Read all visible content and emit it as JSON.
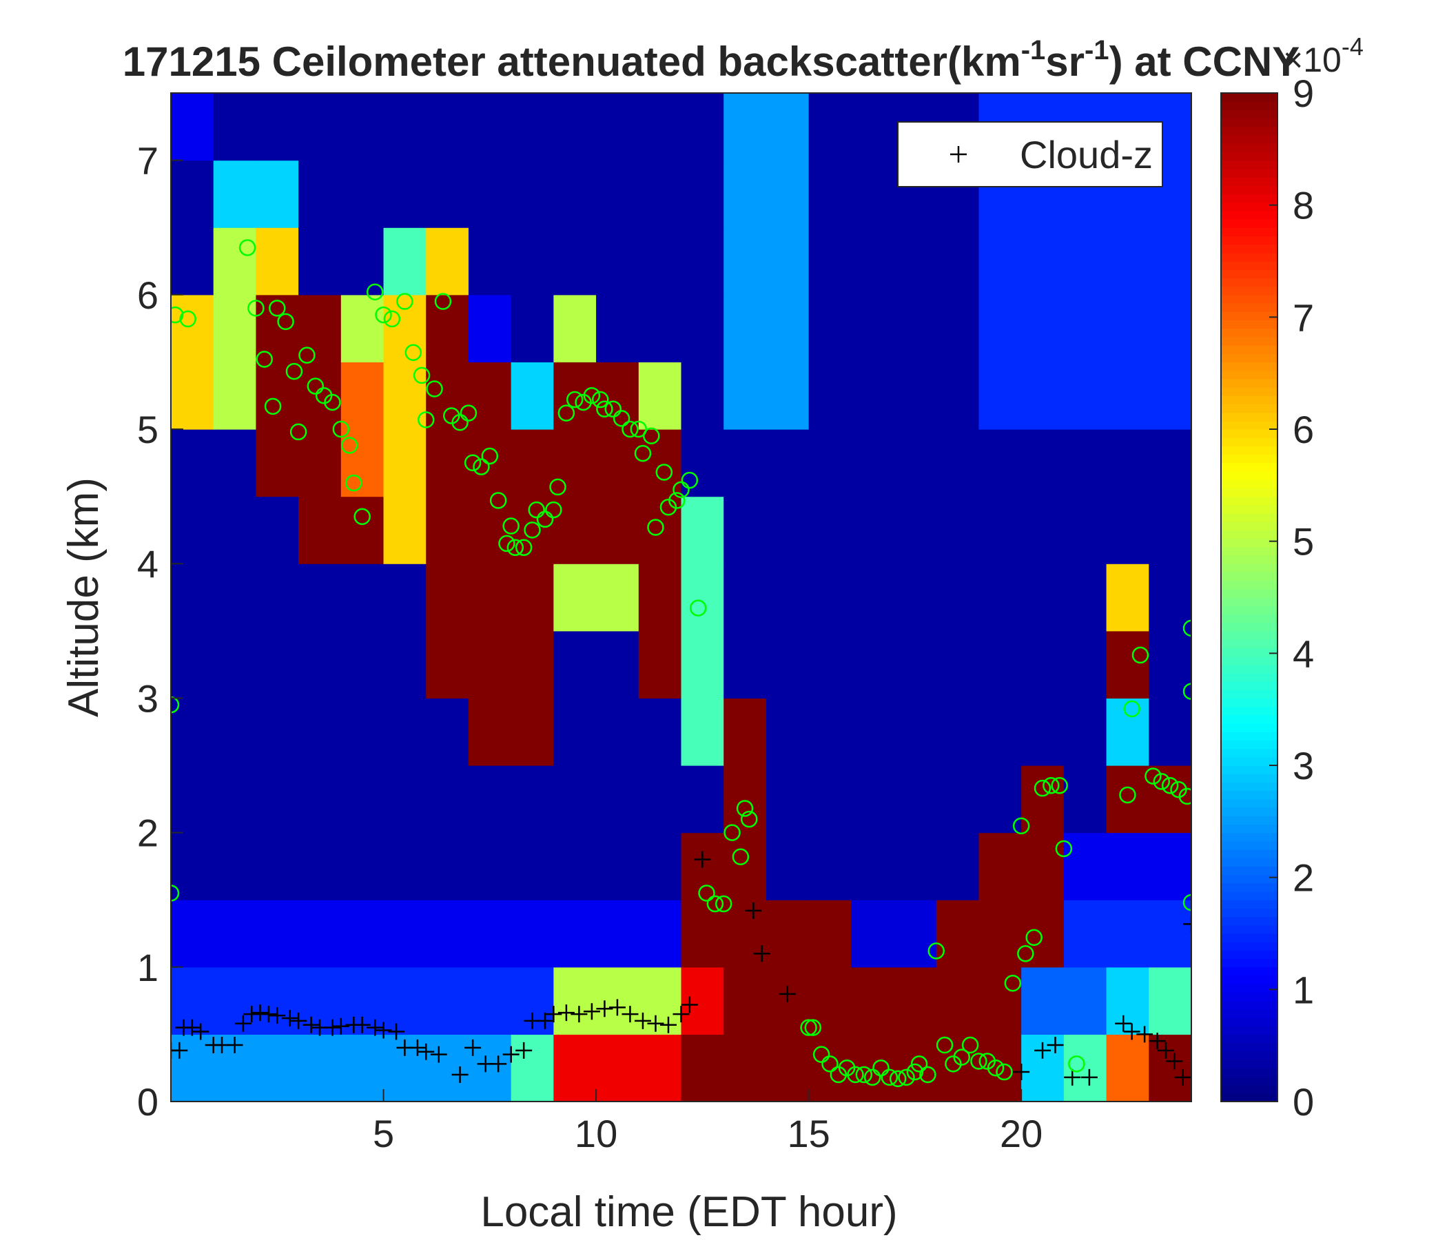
{
  "chart_data": {
    "type": "heatmap",
    "title": [
      "171215 Ceilometer attenuated backscatter(km",
      "-1",
      "sr",
      "-1",
      ") at CCNY"
    ],
    "x_label": "Local time (EDT hour)",
    "y_label": "Altitude (km)",
    "xlim": [
      0,
      24
    ],
    "ylim": [
      0,
      7.5
    ],
    "xticks": [
      5,
      10,
      15,
      20
    ],
    "yticks": [
      0,
      1,
      2,
      3,
      4,
      5,
      6,
      7
    ],
    "colormap": "jet",
    "clim": [
      0,
      9
    ],
    "colorbar_ticks": [
      0,
      1,
      2,
      3,
      4,
      5,
      6,
      7,
      8,
      9
    ],
    "colorbar_exponent": [
      "×10",
      "-4"
    ],
    "x_edges": [
      0,
      1,
      2,
      3,
      4,
      5,
      6,
      7,
      8,
      9,
      10,
      11,
      12,
      13,
      14,
      15,
      16,
      17,
      18,
      19,
      20,
      21,
      22,
      23,
      24
    ],
    "y_edges": [
      0,
      0.5,
      1,
      1.5,
      2,
      2.5,
      3,
      3.5,
      4,
      4.5,
      5,
      5.5,
      6,
      6.5,
      7,
      7.5
    ],
    "z": [
      [
        2.5,
        2.5,
        2.5,
        2.5,
        2.5,
        2.5,
        2.5,
        2.5,
        4,
        8,
        8,
        8,
        9,
        9,
        9,
        9,
        9,
        9,
        9,
        9,
        3,
        4,
        7,
        9
      ],
      [
        1.5,
        1.5,
        1.5,
        1.5,
        1.5,
        1.5,
        1.5,
        1.5,
        1.5,
        5,
        5,
        5,
        8,
        9,
        9,
        9,
        9,
        9,
        9,
        9,
        2,
        2,
        3,
        4
      ],
      [
        1,
        1,
        1,
        1,
        1,
        1,
        1,
        1,
        1,
        1,
        1,
        1,
        9,
        9,
        9,
        9,
        0.8,
        0.8,
        9,
        9,
        9,
        1.5,
        1.5,
        1.5
      ],
      [
        0.3,
        0.3,
        0.3,
        0.3,
        0.3,
        0.3,
        0.3,
        0.3,
        0.3,
        0.3,
        0.3,
        0.3,
        9,
        9,
        0.3,
        0.3,
        0.3,
        0.3,
        0.3,
        9,
        9,
        1,
        1,
        1
      ],
      [
        0.3,
        0.3,
        0.3,
        0.3,
        0.3,
        0.3,
        0.3,
        0.3,
        0.3,
        0.3,
        0.3,
        0.3,
        0.3,
        9,
        0.3,
        0.3,
        0.3,
        0.3,
        0.3,
        0.3,
        9,
        0.3,
        9,
        9
      ],
      [
        0.3,
        0.3,
        0.3,
        0.3,
        0.3,
        0.3,
        0.3,
        9,
        9,
        0.3,
        0.3,
        0.3,
        4,
        9,
        0.3,
        0.3,
        0.3,
        0.3,
        0.3,
        0.3,
        0.3,
        0.3,
        3,
        0.3
      ],
      [
        0.3,
        0.3,
        0.3,
        0.3,
        0.3,
        0.3,
        9,
        9,
        9,
        0.3,
        0.3,
        9,
        4,
        0.3,
        0.3,
        0.3,
        0.3,
        0.3,
        0.3,
        0.3,
        0.3,
        0.3,
        9,
        0.3
      ],
      [
        0.3,
        0.3,
        0.3,
        0.3,
        0.3,
        0.3,
        9,
        9,
        9,
        5,
        5,
        9,
        4,
        0.3,
        0.3,
        0.3,
        0.3,
        0.3,
        0.3,
        0.3,
        0.3,
        0.3,
        6,
        0.3
      ],
      [
        0.3,
        0.3,
        0.3,
        9,
        9,
        6,
        9,
        9,
        9,
        9,
        9,
        9,
        4,
        0.3,
        0.3,
        0.3,
        0.3,
        0.3,
        0.3,
        0.3,
        0.3,
        0.3,
        0.3,
        0.3
      ],
      [
        0.3,
        0.3,
        9,
        9,
        7,
        6,
        9,
        9,
        9,
        9,
        9,
        9,
        0.3,
        0.3,
        0.3,
        0.3,
        0.3,
        0.3,
        0.3,
        0.3,
        0.3,
        0.3,
        0.3,
        0.3
      ],
      [
        6,
        5,
        9,
        9,
        7,
        6,
        9,
        9,
        3,
        9,
        9,
        5,
        0.3,
        2.5,
        2.5,
        0.3,
        0.3,
        0.3,
        0.3,
        1.5,
        1.5,
        1.5,
        1.5,
        1.5
      ],
      [
        6,
        5,
        9,
        9,
        5,
        6,
        9,
        1,
        0.3,
        5,
        0.3,
        0.3,
        0.3,
        2.5,
        2.5,
        0.3,
        0.3,
        0.3,
        0.3,
        1.5,
        1.5,
        1.5,
        1.5,
        1.5
      ],
      [
        0.3,
        5,
        6,
        0.3,
        0.3,
        4,
        6,
        0.3,
        0.3,
        0.3,
        0.3,
        0.3,
        0.3,
        2.5,
        2.5,
        0.3,
        0.3,
        0.3,
        0.3,
        1.5,
        1.5,
        1.5,
        1.5,
        1.5
      ],
      [
        0.3,
        3,
        3,
        0.3,
        0.3,
        0.3,
        0.3,
        0.3,
        0.3,
        0.3,
        0.3,
        0.3,
        0.3,
        2.5,
        2.5,
        0.3,
        0.3,
        0.3,
        0.3,
        1.5,
        1.5,
        1.5,
        1.5,
        1.5
      ],
      [
        1,
        0.3,
        0.3,
        0.3,
        0.3,
        0.3,
        0.3,
        0.3,
        0.3,
        0.3,
        0.3,
        0.3,
        0.3,
        2.5,
        2.5,
        0.3,
        0.3,
        0.3,
        0.3,
        1.5,
        1.5,
        1.5,
        1.5,
        1.5
      ]
    ],
    "legend": "northeast",
    "series": [
      {
        "name": "Cloud-z",
        "color": "#000000",
        "marker": "+",
        "x": [
          0,
          0.2,
          0.3,
          0.5,
          0.7,
          1,
          1.2,
          1.5,
          1.7,
          1.9,
          2.1,
          2.3,
          2.5,
          2.8,
          3,
          3.3,
          3.5,
          3.8,
          4,
          4.3,
          4.5,
          4.8,
          5,
          5.3,
          5.5,
          5.8,
          6,
          6.3,
          6.8,
          7.1,
          7.4,
          7.7,
          8,
          8.3,
          8.5,
          8.8,
          9,
          9.3,
          9.6,
          9.9,
          10.2,
          10.5,
          10.8,
          11.1,
          11.4,
          11.7,
          12,
          12.2,
          12.5,
          13.7,
          13.9,
          14.5,
          20,
          20.5,
          20.8,
          21.2,
          21.6,
          22.4,
          22.6,
          22.9,
          23.2,
          23.4,
          23.6,
          23.8,
          24
        ],
        "values": [
          0.38,
          0.38,
          0.55,
          0.55,
          0.52,
          0.42,
          0.42,
          0.42,
          0.58,
          0.65,
          0.66,
          0.65,
          0.64,
          0.62,
          0.6,
          0.57,
          0.55,
          0.55,
          0.56,
          0.57,
          0.57,
          0.55,
          0.53,
          0.52,
          0.4,
          0.4,
          0.37,
          0.35,
          0.2,
          0.4,
          0.28,
          0.28,
          0.35,
          0.38,
          0.6,
          0.6,
          0.65,
          0.66,
          0.65,
          0.67,
          0.69,
          0.7,
          0.65,
          0.6,
          0.58,
          0.57,
          0.65,
          0.72,
          1.8,
          1.42,
          1.1,
          0.8,
          0.22,
          0.38,
          0.42,
          0.18,
          0.18,
          0.58,
          0.52,
          0.5,
          0.45,
          0.38,
          0.3,
          0.18,
          1.32
        ]
      },
      {
        "color": "#00ff00",
        "marker": "o",
        "x": [
          0,
          0,
          0.1,
          0.4,
          1.8,
          2,
          2.2,
          2.4,
          2.5,
          2.7,
          2.9,
          3,
          3.2,
          3.4,
          3.6,
          3.8,
          4,
          4.2,
          4.3,
          4.5,
          4.8,
          5,
          5.2,
          5.5,
          5.7,
          5.9,
          6,
          6.2,
          6.4,
          6.6,
          6.8,
          7,
          7.1,
          7.3,
          7.5,
          7.7,
          7.9,
          8,
          8.1,
          8.3,
          8.5,
          8.6,
          8.8,
          9,
          9.1,
          9.3,
          9.5,
          9.7,
          9.9,
          10.1,
          10.2,
          10.4,
          10.6,
          10.8,
          11,
          11.1,
          11.3,
          11.4,
          11.6,
          11.7,
          11.9,
          12,
          12.2,
          12.4,
          12.6,
          12.8,
          13,
          13.2,
          13.4,
          13.5,
          13.6,
          15,
          15.1,
          15.3,
          15.5,
          15.7,
          15.9,
          16.1,
          16.3,
          16.5,
          16.7,
          16.9,
          17.1,
          17.3,
          17.5,
          17.6,
          17.8,
          18,
          18.2,
          18.4,
          18.6,
          18.8,
          19,
          19.2,
          19.4,
          19.6,
          19.8,
          20,
          20.1,
          20.3,
          20.5,
          20.7,
          20.9,
          21,
          21.3,
          22.5,
          22.6,
          22.8,
          23.1,
          23.3,
          23.5,
          23.7,
          23.9,
          24,
          24,
          24
        ],
        "values": [
          1.55,
          2.95,
          5.85,
          5.82,
          6.35,
          5.9,
          5.52,
          5.17,
          5.9,
          5.8,
          5.43,
          4.98,
          5.55,
          5.32,
          5.25,
          5.2,
          5.0,
          4.88,
          4.6,
          4.35,
          6.02,
          5.85,
          5.82,
          5.95,
          5.57,
          5.4,
          5.07,
          5.3,
          5.95,
          5.1,
          5.05,
          5.12,
          4.75,
          4.72,
          4.8,
          4.47,
          4.15,
          4.28,
          4.12,
          4.12,
          4.25,
          4.4,
          4.33,
          4.4,
          4.57,
          5.12,
          5.22,
          5.2,
          5.25,
          5.22,
          5.15,
          5.15,
          5.08,
          5.0,
          5.0,
          4.82,
          4.95,
          4.27,
          4.68,
          4.42,
          4.47,
          4.55,
          4.62,
          3.67,
          1.55,
          1.47,
          1.47,
          2.0,
          1.82,
          2.18,
          2.1,
          0.55,
          0.55,
          0.35,
          0.28,
          0.2,
          0.25,
          0.2,
          0.2,
          0.18,
          0.25,
          0.18,
          0.17,
          0.18,
          0.22,
          0.28,
          0.2,
          1.12,
          0.42,
          0.28,
          0.33,
          0.42,
          0.3,
          0.3,
          0.25,
          0.22,
          0.88,
          2.05,
          1.1,
          1.22,
          2.33,
          2.35,
          2.35,
          1.88,
          0.28,
          2.28,
          2.92,
          3.32,
          2.42,
          2.38,
          2.35,
          2.32,
          2.27,
          3.52,
          3.05,
          1.48
        ]
      }
    ]
  }
}
